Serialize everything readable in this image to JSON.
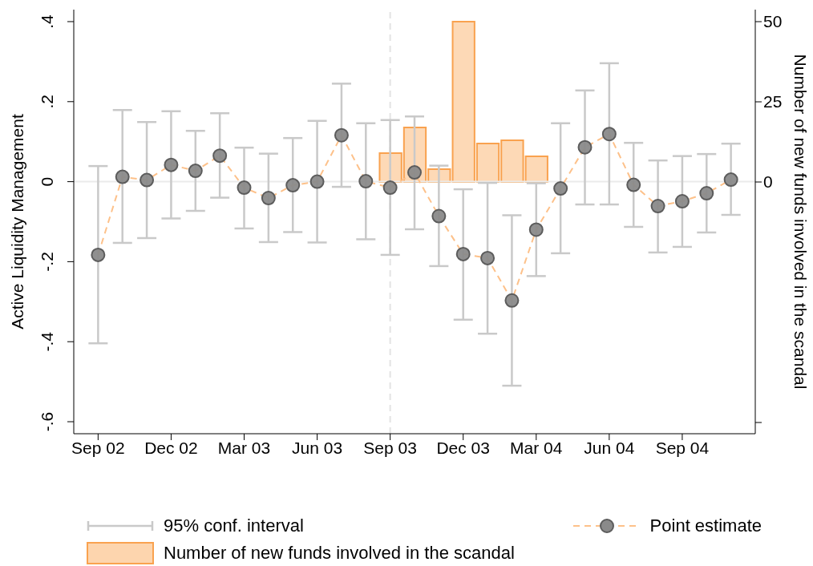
{
  "chart_data": {
    "type": "line",
    "ylabel": "Active Liquidity Management",
    "y2label": "Number of new funds involved in the scandal",
    "x": [
      "2002-09",
      "2002-10",
      "2002-11",
      "2002-12",
      "2003-01",
      "2003-02",
      "2003-03",
      "2003-04",
      "2003-05",
      "2003-06",
      "2003-07",
      "2003-08",
      "2003-09",
      "2003-10",
      "2003-11",
      "2003-12",
      "2004-01",
      "2004-02",
      "2004-03",
      "2004-04",
      "2004-05",
      "2004-06",
      "2004-07",
      "2004-08",
      "2004-09",
      "2004-10",
      "2004-11"
    ],
    "series": [
      {
        "name": "Point estimate",
        "color": "#fdc18a",
        "marker": "circle",
        "line_style": "dashed",
        "values": [
          -0.183,
          0.012,
          0.004,
          0.042,
          0.027,
          0.065,
          -0.015,
          -0.041,
          -0.009,
          0.0,
          0.116,
          0.001,
          -0.015,
          0.023,
          -0.086,
          -0.181,
          -0.191,
          -0.297,
          -0.12,
          -0.017,
          0.086,
          0.119,
          -0.008,
          -0.061,
          -0.049,
          -0.029,
          0.005
        ],
        "errors": [
          [
            -0.404,
            0.039
          ],
          [
            -0.153,
            0.179
          ],
          [
            -0.141,
            0.149
          ],
          [
            -0.092,
            0.176
          ],
          [
            -0.073,
            0.127
          ],
          [
            -0.04,
            0.171
          ],
          [
            -0.117,
            0.085
          ],
          [
            -0.151,
            0.07
          ],
          [
            -0.126,
            0.109
          ],
          [
            -0.152,
            0.152
          ],
          [
            -0.013,
            0.245
          ],
          [
            -0.144,
            0.146
          ],
          [
            -0.183,
            0.154
          ],
          [
            -0.119,
            0.163
          ],
          [
            -0.211,
            0.04
          ],
          [
            -0.345,
            -0.019
          ],
          [
            -0.38,
            -0.003
          ],
          [
            -0.51,
            -0.084
          ],
          [
            -0.236,
            -0.004
          ],
          [
            -0.179,
            0.146
          ],
          [
            -0.057,
            0.228
          ],
          [
            -0.057,
            0.296
          ],
          [
            -0.113,
            0.097
          ],
          [
            -0.177,
            0.053
          ],
          [
            -0.163,
            0.064
          ],
          [
            -0.127,
            0.069
          ],
          [
            -0.083,
            0.095
          ]
        ]
      },
      {
        "type": "bar",
        "axis": "y2",
        "name": "Number of new funds involved in the scandal",
        "color": "#fdd5ae",
        "x": [
          "2003-09",
          "2003-10",
          "2003-11",
          "2003-12",
          "2004-01",
          "2004-02",
          "2004-03"
        ],
        "values": [
          9,
          17,
          4,
          50,
          12,
          13,
          8
        ]
      }
    ],
    "xlim": [
      "2002-08",
      "2004-12"
    ],
    "xticks": [
      {
        "value": "2002-09",
        "label": "Sep 02"
      },
      {
        "value": "2002-12",
        "label": "Dec 02"
      },
      {
        "value": "2003-03",
        "label": "Mar 03"
      },
      {
        "value": "2003-06",
        "label": "Jun 03"
      },
      {
        "value": "2003-09",
        "label": "Sep 03"
      },
      {
        "value": "2003-12",
        "label": "Dec 03"
      },
      {
        "value": "2004-03",
        "label": "Mar 04"
      },
      {
        "value": "2004-06",
        "label": "Jun 04"
      },
      {
        "value": "2004-09",
        "label": "Sep 04"
      }
    ],
    "ylim": [
      -0.63,
      0.43
    ],
    "yticks": [
      {
        "value": 0.4,
        "label": ".4"
      },
      {
        "value": 0.2,
        "label": ".2"
      },
      {
        "value": 0,
        "label": "0"
      },
      {
        "value": -0.2,
        "label": "-.2"
      },
      {
        "value": -0.4,
        "label": "-.4"
      },
      {
        "value": -0.6,
        "label": "-.6"
      }
    ],
    "y2lim": [
      -78.5,
      53.75
    ],
    "y2ticks": [
      50,
      25,
      0,
      {
        "value": -75,
        "label": null
      }
    ],
    "ref_lines": [
      {
        "axis": "y",
        "value": 0,
        "color": "#ebebeb",
        "line_style": "solid"
      },
      {
        "axis": "x",
        "value": "2003-09",
        "color": "#e3e3e3",
        "line_style": "dashed"
      }
    ],
    "annotations": [
      "95% conf. interval"
    ],
    "grid": false,
    "legend": "bottom"
  }
}
